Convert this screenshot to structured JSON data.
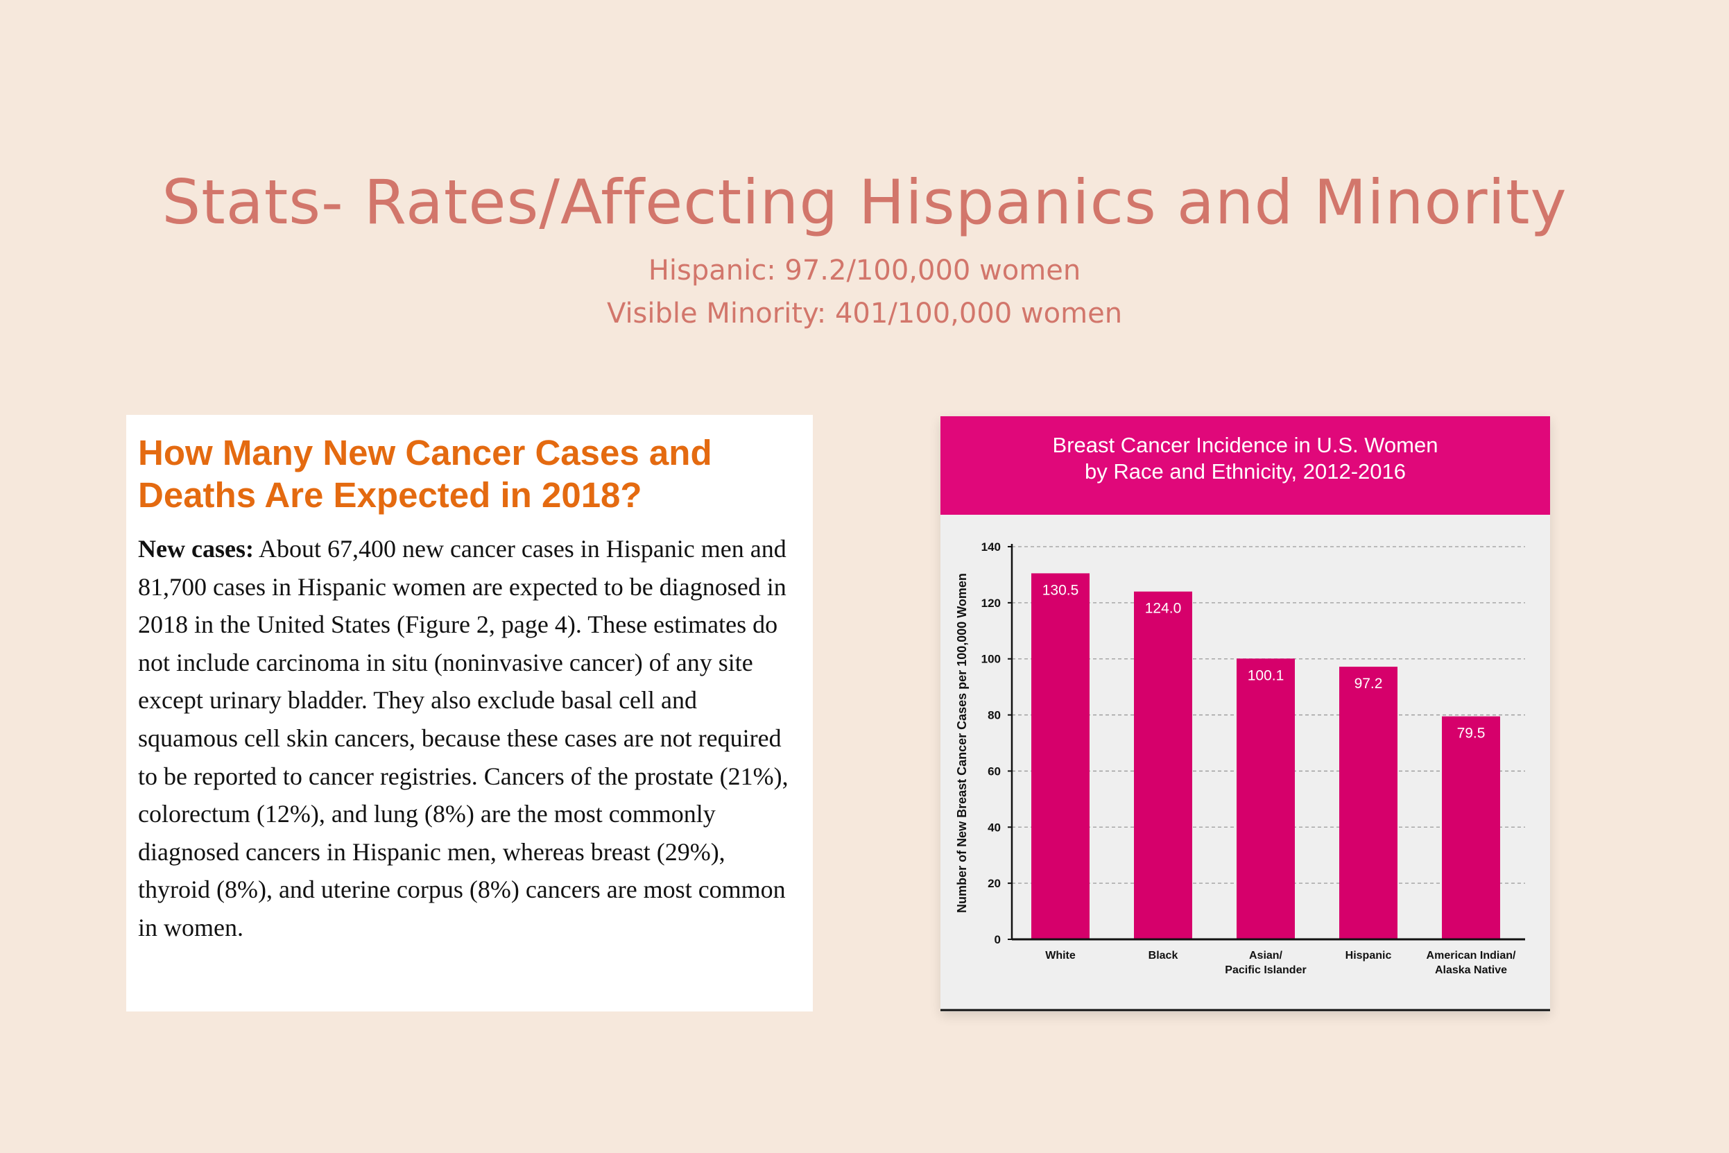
{
  "slide": {
    "title": "Stats- Rates/Affecting Hispanics and Minority",
    "subtitle_lines": [
      "Hispanic: 97.2/100,000 women",
      "Visible Minority: 401/100,000 women"
    ]
  },
  "excerpt": {
    "heading_lines": [
      "How Many New Cancer Cases and",
      "Deaths Are Expected in 2018?"
    ],
    "lead": "New cases:",
    "body": "About 67,400 new cancer cases in Hispanic men and 81,700 cases in Hispanic women are expected to be diagnosed in 2018 in the United States (Figure 2, page 4). These estimates do not include carcinoma in situ (noninvasive cancer) of any site except urinary bladder. They also exclude basal cell and squamous cell skin cancers, because these cases are not required to be reported to cancer registries. Cancers of the prostate (21%), colorectum (12%), and lung (8%) are the most commonly diagnosed cancers in Hispanic men, whereas breast (29%), thyroid (8%), and uterine corpus (8%) cancers are most common in women."
  },
  "chart_data": {
    "type": "bar",
    "title_lines": [
      "Breast Cancer Incidence in U.S. Women",
      "by Race and Ethnicity, 2012-2016"
    ],
    "categories": [
      [
        "White"
      ],
      [
        "Black"
      ],
      [
        "Asian/",
        "Pacific Islander"
      ],
      [
        "Hispanic"
      ],
      [
        "American Indian/",
        "Alaska Native"
      ]
    ],
    "values": [
      130.5,
      124.0,
      100.1,
      97.2,
      79.5
    ],
    "value_labels": [
      "130.5",
      "124.0",
      "100.1",
      "97.2",
      "79.5"
    ],
    "ylabel": "Number of New Breast Cancer Cases per 100,000 Women",
    "xlabel": "",
    "ylim": [
      0,
      140
    ],
    "yticks": [
      0,
      20,
      40,
      60,
      80,
      100,
      120,
      140
    ],
    "grid": true,
    "legend": "none",
    "colors": {
      "bar": "#d6006b",
      "header": "#e0087a",
      "header_text": "#ffffff",
      "value_label": "#ffffff",
      "grid": "#9a9a9a",
      "axis": "#111111"
    }
  }
}
